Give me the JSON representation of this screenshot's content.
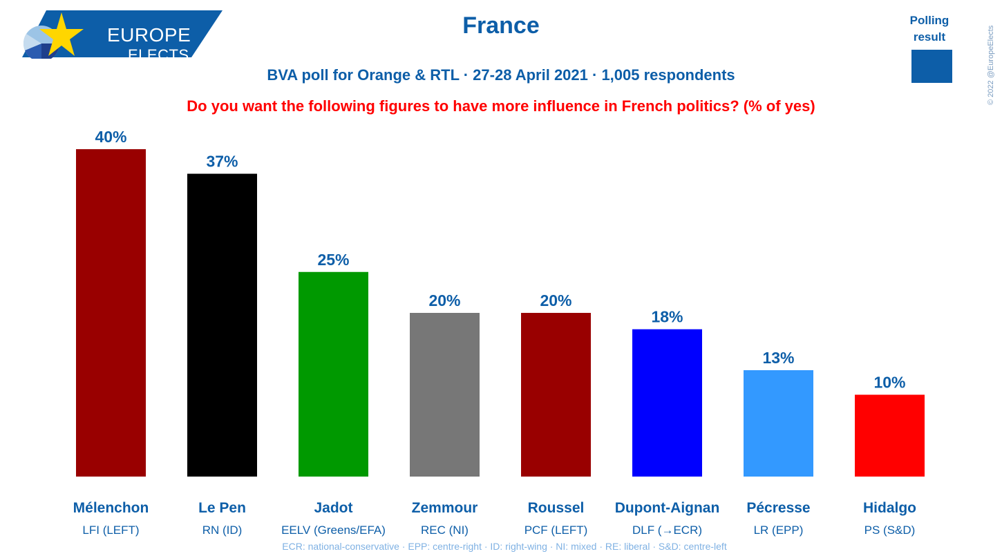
{
  "logo": {
    "line1": "EUROPE",
    "line2": "ELECTS",
    "brand_color": "#0d5ea8",
    "star_color": "#ffd600"
  },
  "header": {
    "title": "France",
    "subtitle": "BVA poll for Orange & RTL · 27-28 April 2021 · 1,005 respondents",
    "question": "Do you want the following figures to have more influence in French politics? (% of yes)"
  },
  "legend": {
    "label": "Polling result",
    "swatch_color": "#0d5ea8",
    "placement": "top-right"
  },
  "copyright": "© 2022 @EuropeElects",
  "footnote": "ECR: national-conservative · EPP: centre-right · ID: right-wing · NI: mixed · RE: liberal · S&D: centre-left",
  "chart_data": {
    "type": "bar",
    "title": "",
    "xlabel": "",
    "ylabel": "",
    "ylim": [
      0,
      40
    ],
    "grid": false,
    "categories": [
      "Mélenchon",
      "Le Pen",
      "Jadot",
      "Zemmour",
      "Roussel",
      "Dupont-Aignan",
      "Pécresse",
      "Hidalgo"
    ],
    "parties": [
      "LFI (LEFT)",
      "RN (ID)",
      "EELV (Greens/EFA)",
      "REC (NI)",
      "PCF (LEFT)",
      "DLF (→ECR)",
      "LR (EPP)",
      "PS (S&D)"
    ],
    "values": [
      40,
      37,
      25,
      20,
      20,
      18,
      13,
      10
    ],
    "labels": [
      "40%",
      "37%",
      "25%",
      "20%",
      "20%",
      "18%",
      "13%",
      "10%"
    ],
    "colors": [
      "#990000",
      "#000000",
      "#009900",
      "#777777",
      "#990000",
      "#0000ff",
      "#3399ff",
      "#ff0000"
    ],
    "text_color": "#0d5ea8"
  }
}
